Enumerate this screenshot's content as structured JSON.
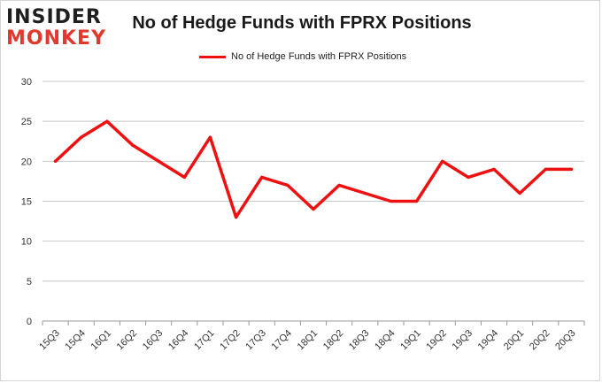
{
  "brand": {
    "logo_top": "INSIDER",
    "logo_bottom": "MONKEY"
  },
  "chart_data": {
    "type": "line",
    "title": "No of Hedge Funds with FPRX Positions",
    "xlabel": "",
    "ylabel": "",
    "categories": [
      "15Q3",
      "15Q4",
      "16Q1",
      "16Q2",
      "16Q3",
      "16Q4",
      "17Q1",
      "17Q2",
      "17Q3",
      "17Q4",
      "18Q1",
      "18Q2",
      "18Q3",
      "18Q4",
      "19Q1",
      "19Q2",
      "19Q3",
      "19Q4",
      "20Q1",
      "20Q2",
      "20Q3"
    ],
    "series": [
      {
        "name": "No of Hedge Funds with FPRX Positions",
        "color": "#ee1111",
        "values": [
          20,
          23,
          25,
          22,
          20,
          18,
          23,
          13,
          18,
          17,
          14,
          17,
          16,
          15,
          15,
          20,
          18,
          19,
          16,
          19,
          19
        ]
      }
    ],
    "ylim": [
      0,
      30
    ],
    "yticks": [
      0,
      5,
      10,
      15,
      20,
      25,
      30
    ],
    "grid": true,
    "legend_position": "top-center"
  }
}
